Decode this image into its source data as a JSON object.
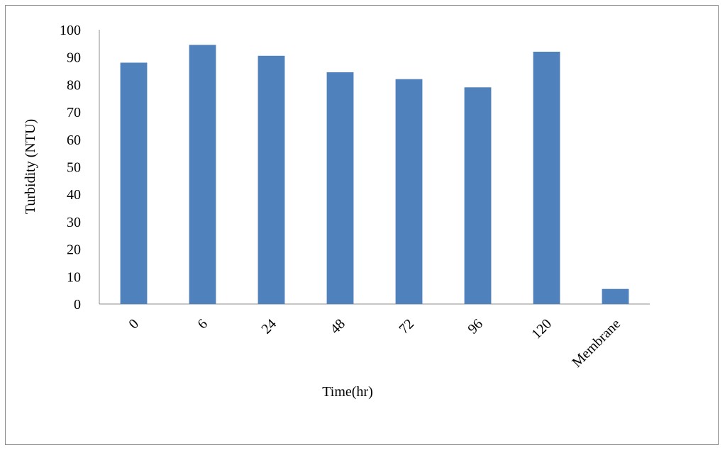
{
  "chart_data": {
    "type": "bar",
    "title": "",
    "xlabel": "Time(hr)",
    "ylabel": "Turbidity (NTU)",
    "categories": [
      "0",
      "6",
      "24",
      "48",
      "72",
      "96",
      "120",
      "Membrane"
    ],
    "values": [
      88,
      94.5,
      90.5,
      84.5,
      82,
      79,
      92,
      5.5
    ],
    "ylim": [
      0,
      100
    ],
    "yticks": [
      "0",
      "10",
      "20",
      "30",
      "40",
      "50",
      "60",
      "70",
      "80",
      "90",
      "100"
    ],
    "grid": false,
    "legend": "none",
    "bar_color": "#4f81bd"
  }
}
